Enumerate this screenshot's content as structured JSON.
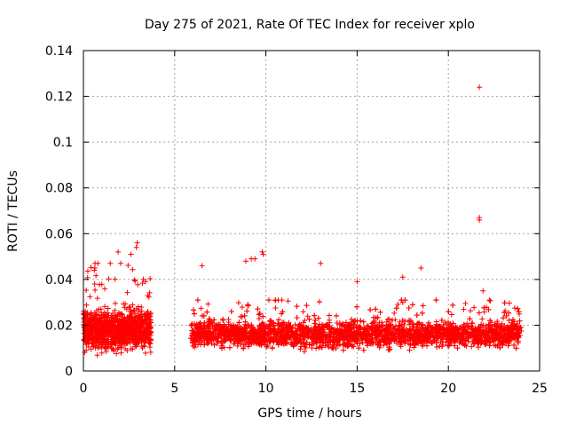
{
  "chart_data": {
    "type": "scatter",
    "title": "Day 275 of 2021, Rate Of TEC Index for receiver xplo",
    "xlabel": "GPS time / hours",
    "ylabel": "ROTI / TECUs",
    "xlim": [
      0,
      25
    ],
    "ylim": [
      0,
      0.14
    ],
    "x_ticks": [
      0,
      5,
      10,
      15,
      20,
      25
    ],
    "x_tick_labels": [
      "0",
      "5",
      "10",
      "15",
      "20",
      "25"
    ],
    "y_ticks": [
      0,
      0.02,
      0.04,
      0.06,
      0.08,
      0.1,
      0.12,
      0.14
    ],
    "y_tick_labels": [
      "0",
      "0.02",
      "0.04",
      "0.06",
      "0.08",
      "0.1",
      "0.12",
      "0.14"
    ],
    "grid": true,
    "marker": "plus",
    "color": "#ff0000",
    "outliers": [
      {
        "x": 21.7,
        "y": 0.124
      },
      {
        "x": 21.7,
        "y": 0.067
      },
      {
        "x": 21.7,
        "y": 0.066
      },
      {
        "x": 9.8,
        "y": 0.052
      },
      {
        "x": 9.85,
        "y": 0.051
      },
      {
        "x": 9.4,
        "y": 0.049
      },
      {
        "x": 9.2,
        "y": 0.049
      },
      {
        "x": 8.9,
        "y": 0.048
      },
      {
        "x": 13.0,
        "y": 0.047
      },
      {
        "x": 18.5,
        "y": 0.045
      },
      {
        "x": 6.5,
        "y": 0.046
      },
      {
        "x": 15.0,
        "y": 0.039
      },
      {
        "x": 17.5,
        "y": 0.041
      },
      {
        "x": 21.9,
        "y": 0.035
      },
      {
        "x": 2.95,
        "y": 0.056
      },
      {
        "x": 2.9,
        "y": 0.054
      },
      {
        "x": 2.6,
        "y": 0.051
      },
      {
        "x": 1.9,
        "y": 0.052
      }
    ],
    "segments": [
      {
        "x_start": 0.0,
        "x_end": 3.7,
        "base": 0.018,
        "spread": 0.012,
        "max": 0.047,
        "count": 1100
      },
      {
        "x_start": 5.9,
        "x_end": 24.0,
        "base": 0.016,
        "spread": 0.008,
        "max": 0.031,
        "count": 3800
      }
    ]
  }
}
